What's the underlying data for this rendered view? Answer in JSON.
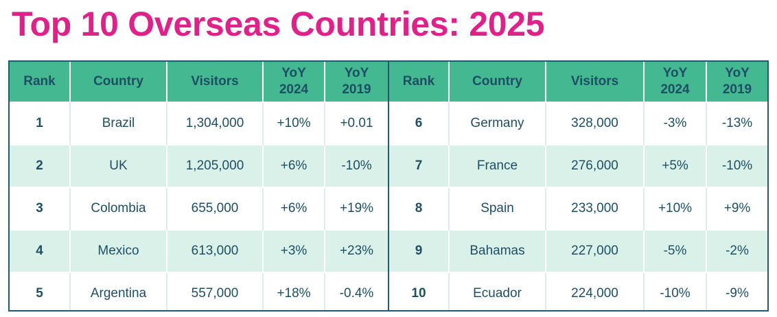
{
  "title": "Top 10 Overseas Countries: 2025",
  "headers": {
    "rank": "Rank",
    "country": "Country",
    "visitors": "Visitors",
    "yoy2024_line1": "YoY",
    "yoy2024_line2": "2024",
    "yoy2019_line1": "YoY",
    "yoy2019_line2": "2019"
  },
  "left_rows": [
    {
      "rank": "1",
      "country": "Brazil",
      "visitors": "1,304,000",
      "yoy2024": "+10%",
      "yoy2019": "+0.01"
    },
    {
      "rank": "2",
      "country": "UK",
      "visitors": "1,205,000",
      "yoy2024": "+6%",
      "yoy2019": "-10%"
    },
    {
      "rank": "3",
      "country": "Colombia",
      "visitors": "655,000",
      "yoy2024": "+6%",
      "yoy2019": "+19%"
    },
    {
      "rank": "4",
      "country": "Mexico",
      "visitors": "613,000",
      "yoy2024": "+3%",
      "yoy2019": "+23%"
    },
    {
      "rank": "5",
      "country": "Argentina",
      "visitors": "557,000",
      "yoy2024": "+18%",
      "yoy2019": "-0.4%"
    }
  ],
  "right_rows": [
    {
      "rank": "6",
      "country": "Germany",
      "visitors": "328,000",
      "yoy2024": "-3%",
      "yoy2019": "-13%"
    },
    {
      "rank": "7",
      "country": "France",
      "visitors": "276,000",
      "yoy2024": "+5%",
      "yoy2019": "-10%"
    },
    {
      "rank": "8",
      "country": "Spain",
      "visitors": "233,000",
      "yoy2024": "+10%",
      "yoy2019": "+9%"
    },
    {
      "rank": "9",
      "country": "Bahamas",
      "visitors": "227,000",
      "yoy2024": "-5%",
      "yoy2019": "-2%"
    },
    {
      "rank": "10",
      "country": "Ecuador",
      "visitors": "224,000",
      "yoy2024": "-10%",
      "yoy2019": "-9%"
    }
  ],
  "colors": {
    "title": "#e0218a",
    "header_bg": "#43b891",
    "text": "#1e4e63",
    "stripe": "#daf1e9",
    "border": "#1e5b6b"
  }
}
